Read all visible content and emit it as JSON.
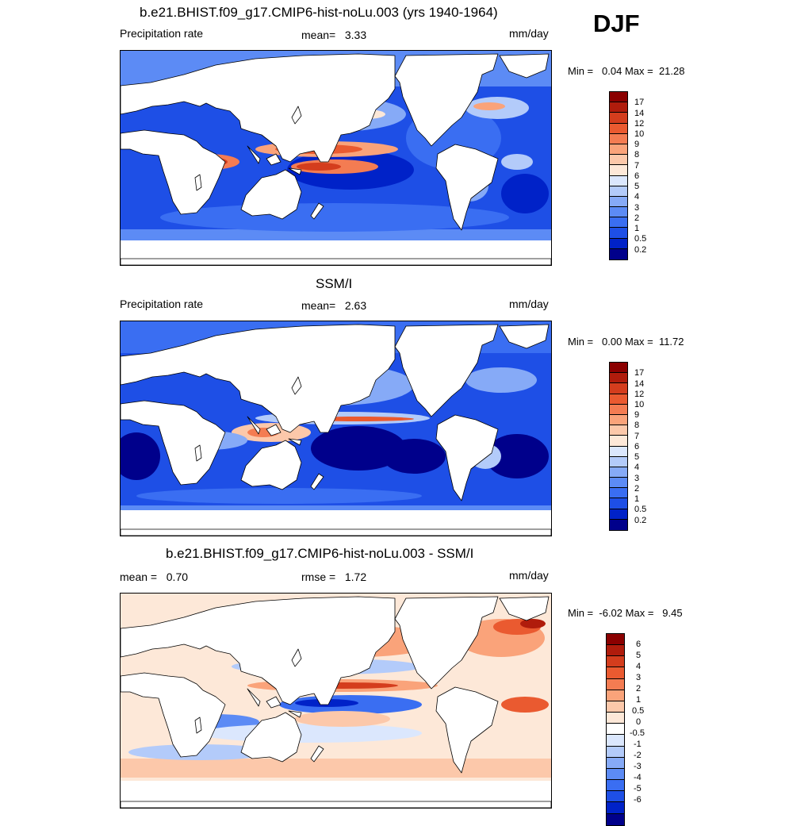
{
  "season": "DJF",
  "colors": {
    "prec": [
      "#00008b",
      "#0022c8",
      "#1e4fe6",
      "#3a6ef2",
      "#5c8bf5",
      "#86aaf7",
      "#b3cbfa",
      "#dbe7fd",
      "#fde8d8",
      "#fcc8aa",
      "#faa37a",
      "#f47c52",
      "#ea5a30",
      "#d43d1d",
      "#b01c0c",
      "#8b0000"
    ],
    "diff": [
      "#00008b",
      "#0022c8",
      "#1e4fe6",
      "#3a6ef2",
      "#5c8bf5",
      "#86aaf7",
      "#b3cbfa",
      "#dbe7fd",
      "#ffffff",
      "#fde8d8",
      "#fcc8aa",
      "#faa37a",
      "#f47c52",
      "#ea5a30",
      "#d43d1d",
      "#b01c0c",
      "#8b0000"
    ]
  },
  "panel1": {
    "title": "b.e21.BHIST.f09_g17.CMIP6-hist-noLu.003 (yrs 1940-1964)",
    "left": "Precipitation rate",
    "mean_label": "mean=",
    "mean_value": "3.33",
    "units": "mm/day",
    "min_label": "Min =",
    "min_value": "0.04",
    "max_label": "Max =",
    "max_value": "21.28",
    "levels": [
      "17",
      "14",
      "12",
      "10",
      "9",
      "8",
      "7",
      "6",
      "5",
      "4",
      "3",
      "2",
      "1",
      "0.5",
      "0.2"
    ]
  },
  "panel2": {
    "title": "SSM/I",
    "left": "Precipitation rate",
    "mean_label": "mean=",
    "mean_value": "2.63",
    "units": "mm/day",
    "min_label": "Min =",
    "min_value": "0.00",
    "max_label": "Max =",
    "max_value": "11.72",
    "levels": [
      "17",
      "14",
      "12",
      "10",
      "9",
      "8",
      "7",
      "6",
      "5",
      "4",
      "3",
      "2",
      "1",
      "0.5",
      "0.2"
    ]
  },
  "panel3": {
    "title": "b.e21.BHIST.f09_g17.CMIP6-hist-noLu.003 - SSM/I",
    "mean_label": "mean =",
    "mean_value": "0.70",
    "rmse_label": "rmse =",
    "rmse_value": "1.72",
    "units": "mm/day",
    "min_label": "Min =",
    "min_value": "-6.02",
    "max_label": "Max =",
    "max_value": "9.45",
    "levels": [
      "6",
      "5",
      "4",
      "3",
      "2",
      "1",
      "0.5",
      "0",
      "-0.5",
      "-1",
      "-2",
      "-3",
      "-4",
      "-5",
      "-6"
    ]
  }
}
